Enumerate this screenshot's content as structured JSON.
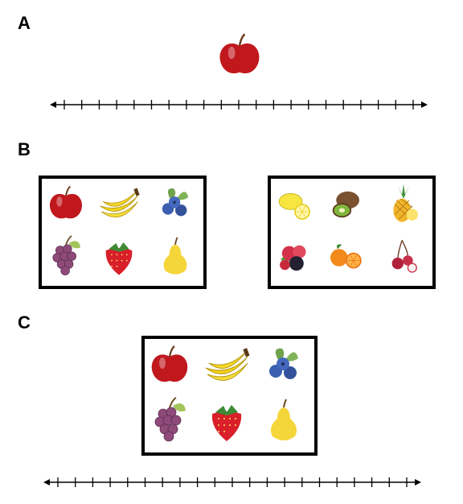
{
  "panels": [
    {
      "label": "A"
    },
    {
      "label": "B"
    },
    {
      "label": "C"
    }
  ],
  "panel_a": {
    "object": "apple-icon"
  },
  "panel_b": {
    "left_set": [
      "apple-icon",
      "banana-icon",
      "blueberries-icon",
      "grapes-icon",
      "strawberry-icon",
      "pear-icon"
    ],
    "right_set": [
      "lemon-icon",
      "kiwi-icon",
      "pineapple-icon",
      "raspberry-blackberry-icon",
      "orange-icon",
      "lychee-icon"
    ]
  },
  "panel_c": {
    "set": [
      "apple-icon",
      "banana-icon",
      "blueberries-icon",
      "grapes-icon",
      "strawberry-icon",
      "pear-icon"
    ]
  },
  "number_lines": [
    {
      "ticks": 21
    },
    {
      "ticks": 21
    }
  ],
  "colors": {
    "line": "#000000",
    "apple": "#c0181d",
    "banana": "#f2d21b",
    "blueberry": "#3b5fb0",
    "grape": "#8e4a7a",
    "strawberry": "#d81f2a",
    "pear": "#f5d63a",
    "lemon": "#f7e640",
    "kiwi": "#7a5230",
    "pineapple": "#f0b62a",
    "orange": "#f28a1b",
    "lychee": "#b0213a"
  }
}
